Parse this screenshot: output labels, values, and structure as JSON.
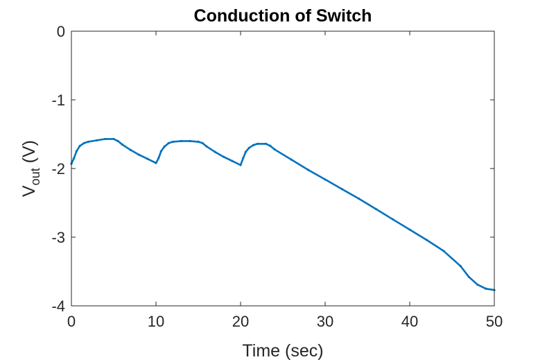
{
  "chart_data": {
    "type": "line",
    "title": "Conduction of Switch",
    "xlabel": "Time (sec)",
    "ylabel_main": "V",
    "ylabel_sub": "out",
    "ylabel_unit": " (V)",
    "xlim": [
      0,
      50
    ],
    "ylim": [
      -4,
      0
    ],
    "xticks": [
      0,
      10,
      20,
      30,
      40,
      50
    ],
    "xtick_labels": [
      "0",
      "10",
      "20",
      "30",
      "40",
      "50"
    ],
    "yticks": [
      0,
      -1,
      -2,
      -3,
      -4
    ],
    "ytick_labels": [
      "0",
      "-1",
      "-2",
      "-3",
      "-4"
    ],
    "grid": false,
    "line_color": "#0072BD",
    "series": [
      {
        "x": [
          0,
          0.3,
          0.6,
          1,
          1.5,
          2,
          3,
          4,
          5,
          5.5,
          6,
          7,
          8,
          9,
          10,
          10.3,
          10.6,
          11,
          11.5,
          12,
          13,
          14,
          15,
          15.5,
          16,
          17,
          18,
          19,
          20,
          20.3,
          20.6,
          21,
          21.5,
          22,
          23,
          23.5,
          24,
          26,
          28,
          30,
          32,
          34,
          36,
          38,
          40,
          42,
          44,
          46,
          47,
          48,
          49,
          50
        ],
        "y": [
          -1.93,
          -1.85,
          -1.75,
          -1.67,
          -1.63,
          -1.61,
          -1.59,
          -1.57,
          -1.57,
          -1.6,
          -1.65,
          -1.73,
          -1.8,
          -1.86,
          -1.92,
          -1.85,
          -1.75,
          -1.68,
          -1.63,
          -1.61,
          -1.6,
          -1.6,
          -1.61,
          -1.63,
          -1.68,
          -1.76,
          -1.83,
          -1.89,
          -1.95,
          -1.85,
          -1.76,
          -1.7,
          -1.66,
          -1.64,
          -1.64,
          -1.67,
          -1.72,
          -1.87,
          -2.02,
          -2.16,
          -2.3,
          -2.44,
          -2.59,
          -2.74,
          -2.89,
          -3.04,
          -3.2,
          -3.42,
          -3.58,
          -3.69,
          -3.75,
          -3.77
        ]
      }
    ]
  }
}
